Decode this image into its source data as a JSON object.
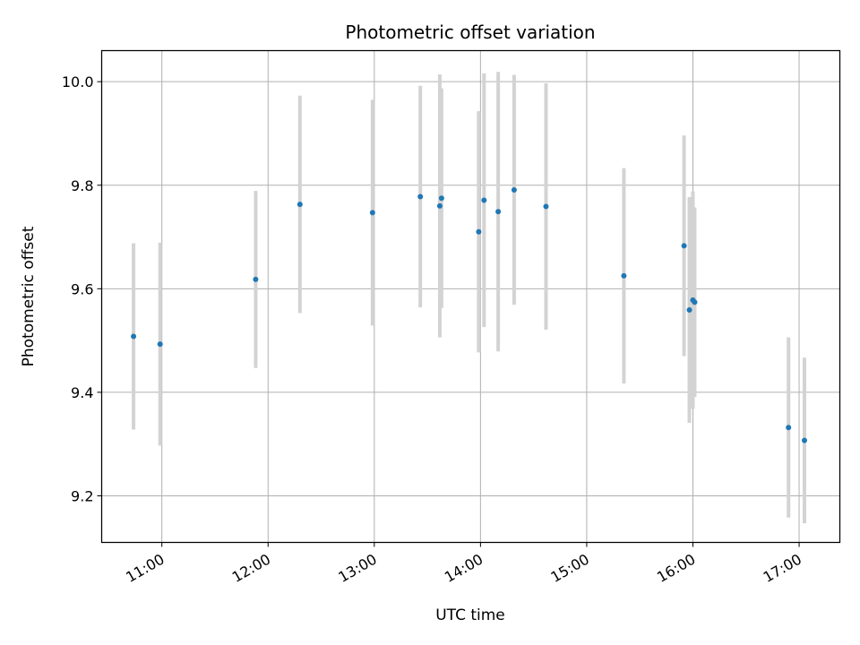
{
  "chart_data": {
    "type": "scatter",
    "title": "Photometric offset variation",
    "xlabel": "UTC time",
    "ylabel": "Photometric offset",
    "x_tick_labels": [
      "11:00",
      "12:00",
      "13:00",
      "14:00",
      "15:00",
      "16:00",
      "17:00"
    ],
    "y_tick_labels": [
      "9.2",
      "9.4",
      "9.6",
      "9.8",
      "10.0"
    ],
    "xlim": [
      "10:26",
      "17:23"
    ],
    "ylim": [
      9.11,
      10.06
    ],
    "grid": true,
    "colors": {
      "points": "#1f77b4",
      "errorbars": "#d3d3d3",
      "grid": "#b0b0b0"
    },
    "points": [
      {
        "time": "10:44",
        "value": 9.508,
        "err": 0.18
      },
      {
        "time": "10:59",
        "value": 9.493,
        "err": 0.196
      },
      {
        "time": "11:53",
        "value": 9.618,
        "err": 0.171
      },
      {
        "time": "12:18",
        "value": 9.763,
        "err": 0.21
      },
      {
        "time": "12:59",
        "value": 9.747,
        "err": 0.218
      },
      {
        "time": "13:26",
        "value": 9.778,
        "err": 0.214
      },
      {
        "time": "13:37",
        "value": 9.76,
        "err": 0.254
      },
      {
        "time": "13:38",
        "value": 9.775,
        "err": 0.212
      },
      {
        "time": "13:59",
        "value": 9.71,
        "err": 0.233
      },
      {
        "time": "14:02",
        "value": 9.771,
        "err": 0.245
      },
      {
        "time": "14:10",
        "value": 9.749,
        "err": 0.27
      },
      {
        "time": "14:19",
        "value": 9.791,
        "err": 0.222
      },
      {
        "time": "14:37",
        "value": 9.759,
        "err": 0.238
      },
      {
        "time": "15:21",
        "value": 9.625,
        "err": 0.208
      },
      {
        "time": "15:55",
        "value": 9.683,
        "err": 0.213
      },
      {
        "time": "15:58",
        "value": 9.559,
        "err": 0.218
      },
      {
        "time": "16:00",
        "value": 9.578,
        "err": 0.21
      },
      {
        "time": "16:01",
        "value": 9.574,
        "err": 0.183
      },
      {
        "time": "16:54",
        "value": 9.332,
        "err": 0.174
      },
      {
        "time": "17:03",
        "value": 9.307,
        "err": 0.16
      }
    ]
  }
}
